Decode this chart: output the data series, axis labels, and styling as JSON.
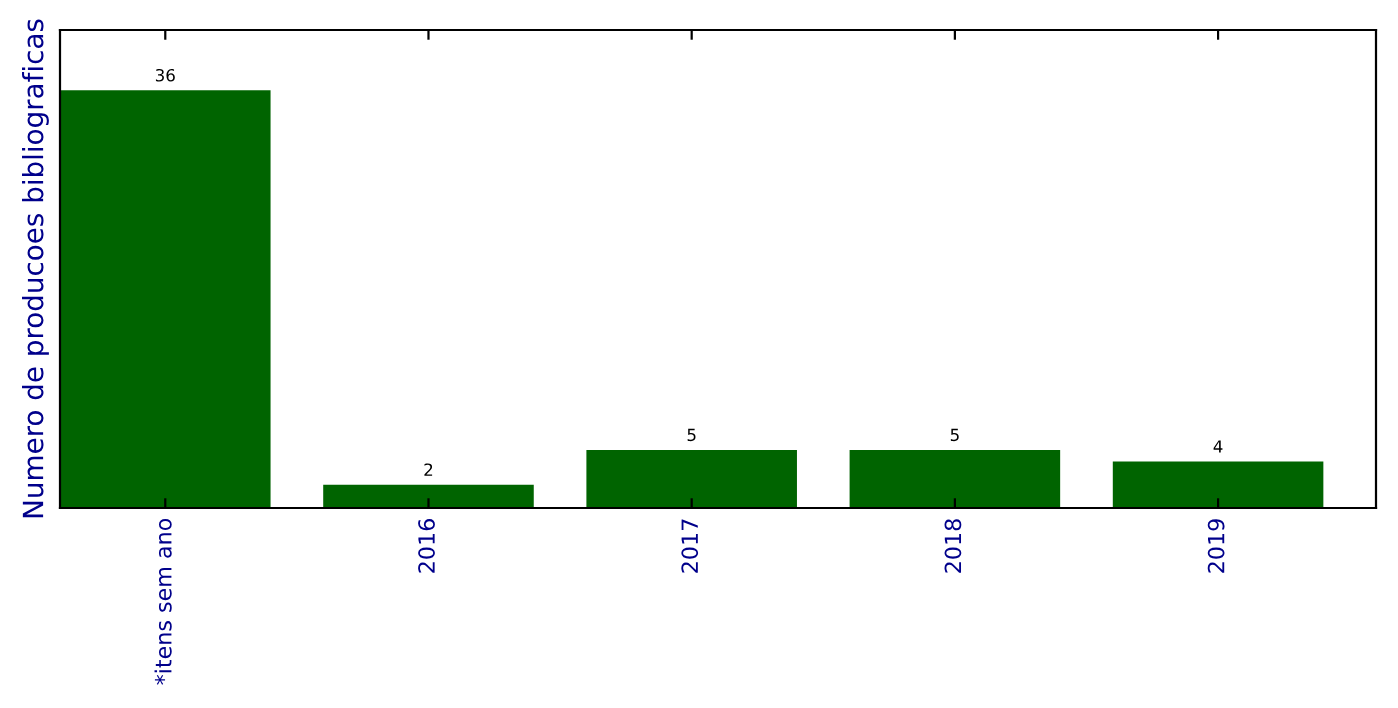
{
  "chart_data": {
    "type": "bar",
    "ylabel": "Numero de producoes bibliograficas",
    "categories": [
      "*itens sem ano",
      "2016",
      "2017",
      "2018",
      "2019"
    ],
    "values": [
      36,
      2,
      5,
      5,
      4
    ],
    "color": "#006400",
    "data_labels": true,
    "ylim": [
      0,
      41.2
    ],
    "tick_labels": "x",
    "grid": false,
    "legend": false
  }
}
